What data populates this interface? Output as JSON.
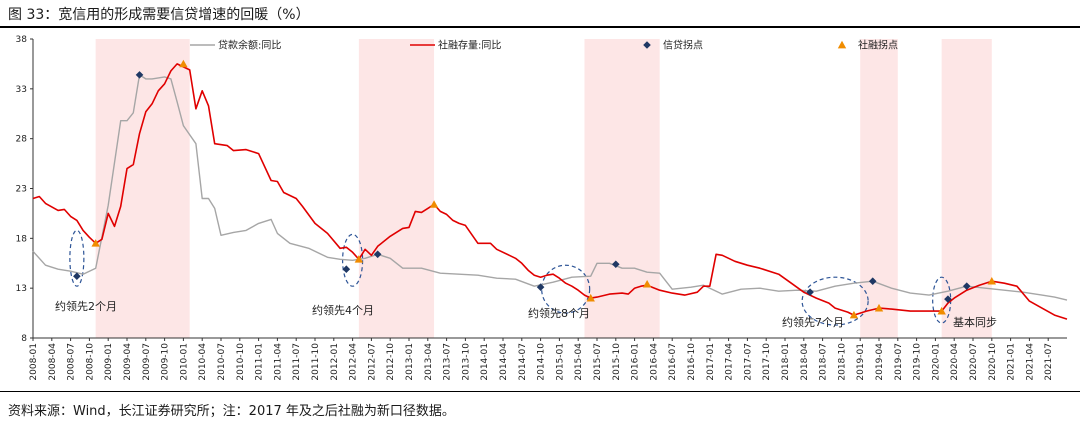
{
  "title": "图 33：宽信用的形成需要信贷增速的回暖（%）",
  "source": "资料来源：Wind，长江证券研究所；注：2017 年及之后社融为新口径数据。",
  "colors": {
    "loan": "#a6a6a6",
    "social": "#e00000",
    "loan_point": "#1f3864",
    "social_point": "#f08c00",
    "shade": "#fde6e6",
    "ellipse": "#2e5597"
  },
  "chart_data": {
    "type": "line",
    "title": "宽信用的形成需要信贷增速的回暖（%）",
    "xlabel": "",
    "ylabel": "%",
    "ylim": [
      8,
      38
    ],
    "yticks": [
      8,
      13,
      18,
      23,
      28,
      33,
      38
    ],
    "x_start": "2008-01",
    "x_end": "2021-10",
    "xtick_labels": [
      "2008-01",
      "2008-04",
      "2008-07",
      "2008-10",
      "2009-01",
      "2009-04",
      "2009-07",
      "2009-10",
      "2010-01",
      "2010-04",
      "2010-07",
      "2010-10",
      "2011-01",
      "2011-04",
      "2011-07",
      "2011-10",
      "2012-01",
      "2012-04",
      "2012-07",
      "2012-10",
      "2013-01",
      "2013-04",
      "2013-07",
      "2013-10",
      "2014-01",
      "2014-04",
      "2014-07",
      "2014-10",
      "2015-01",
      "2015-04",
      "2015-07",
      "2015-10",
      "2016-01",
      "2016-04",
      "2016-07",
      "2016-10",
      "2017-01",
      "2017-04",
      "2017-07",
      "2017-10",
      "2018-01",
      "2018-04",
      "2018-07",
      "2018-10",
      "2019-01",
      "2019-04",
      "2019-07",
      "2019-10",
      "2020-01",
      "2020-04",
      "2020-07",
      "2020-10",
      "2021-01",
      "2021-04",
      "2021-07"
    ],
    "shaded_periods": [
      [
        "2008-11",
        "2010-02"
      ],
      [
        "2012-05",
        "2013-05"
      ],
      [
        "2015-05",
        "2016-05"
      ],
      [
        "2019-01",
        "2019-07"
      ],
      [
        "2020-02",
        "2020-10"
      ]
    ],
    "series": [
      {
        "name": "贷款余额:同比",
        "style": "gray-line",
        "points": [
          [
            "2008-01",
            16.7
          ],
          [
            "2008-03",
            15.3
          ],
          [
            "2008-05",
            14.9
          ],
          [
            "2008-07",
            14.7
          ],
          [
            "2008-09",
            14.4
          ],
          [
            "2008-11",
            15.0
          ],
          [
            "2009-01",
            21.3
          ],
          [
            "2009-03",
            29.8
          ],
          [
            "2009-04",
            29.8
          ],
          [
            "2009-05",
            30.6
          ],
          [
            "2009-06",
            34.4
          ],
          [
            "2009-07",
            34.0
          ],
          [
            "2009-08",
            34.0
          ],
          [
            "2009-10",
            34.2
          ],
          [
            "2009-11",
            34.0
          ],
          [
            "2009-12",
            31.7
          ],
          [
            "2010-01",
            29.3
          ],
          [
            "2010-03",
            27.5
          ],
          [
            "2010-04",
            22.0
          ],
          [
            "2010-05",
            22.0
          ],
          [
            "2010-06",
            21.0
          ],
          [
            "2010-07",
            18.3
          ],
          [
            "2010-09",
            18.6
          ],
          [
            "2010-11",
            18.8
          ],
          [
            "2011-01",
            19.5
          ],
          [
            "2011-03",
            19.9
          ],
          [
            "2011-04",
            18.5
          ],
          [
            "2011-06",
            17.5
          ],
          [
            "2011-09",
            17.0
          ],
          [
            "2011-12",
            16.1
          ],
          [
            "2012-02",
            15.9
          ],
          [
            "2012-04",
            15.8
          ],
          [
            "2012-06",
            16.0
          ],
          [
            "2012-08",
            16.4
          ],
          [
            "2012-10",
            16.0
          ],
          [
            "2012-12",
            15.0
          ],
          [
            "2013-03",
            15.0
          ],
          [
            "2013-06",
            14.5
          ],
          [
            "2013-09",
            14.4
          ],
          [
            "2013-12",
            14.3
          ],
          [
            "2014-03",
            14.0
          ],
          [
            "2014-06",
            13.9
          ],
          [
            "2014-09",
            13.2
          ],
          [
            "2014-12",
            13.6
          ],
          [
            "2015-03",
            14.1
          ],
          [
            "2015-06",
            14.2
          ],
          [
            "2015-07",
            15.5
          ],
          [
            "2015-09",
            15.5
          ],
          [
            "2015-11",
            15.0
          ],
          [
            "2016-01",
            15.0
          ],
          [
            "2016-03",
            14.6
          ],
          [
            "2016-05",
            14.5
          ],
          [
            "2016-07",
            12.9
          ],
          [
            "2016-10",
            13.1
          ],
          [
            "2016-12",
            13.3
          ],
          [
            "2017-03",
            12.4
          ],
          [
            "2017-06",
            12.9
          ],
          [
            "2017-09",
            13.0
          ],
          [
            "2017-12",
            12.7
          ],
          [
            "2018-03",
            12.8
          ],
          [
            "2018-06",
            12.7
          ],
          [
            "2018-09",
            13.2
          ],
          [
            "2018-12",
            13.5
          ],
          [
            "2019-03",
            13.7
          ],
          [
            "2019-06",
            13.0
          ],
          [
            "2019-09",
            12.5
          ],
          [
            "2019-12",
            12.3
          ],
          [
            "2020-03",
            12.7
          ],
          [
            "2020-06",
            13.2
          ],
          [
            "2020-09",
            13.0
          ],
          [
            "2020-12",
            12.8
          ],
          [
            "2021-03",
            12.6
          ],
          [
            "2021-06",
            12.3
          ],
          [
            "2021-08",
            12.1
          ],
          [
            "2021-10",
            11.8
          ]
        ]
      },
      {
        "name": "社融存量:同比",
        "style": "red-line",
        "points": [
          [
            "2008-01",
            22.0
          ],
          [
            "2008-02",
            22.2
          ],
          [
            "2008-03",
            21.5
          ],
          [
            "2008-05",
            20.8
          ],
          [
            "2008-06",
            20.9
          ],
          [
            "2008-07",
            20.2
          ],
          [
            "2008-08",
            19.8
          ],
          [
            "2008-09",
            18.8
          ],
          [
            "2008-10",
            18.1
          ],
          [
            "2008-11",
            17.5
          ],
          [
            "2008-12",
            17.9
          ],
          [
            "2009-01",
            20.5
          ],
          [
            "2009-02",
            19.2
          ],
          [
            "2009-03",
            21.2
          ],
          [
            "2009-04",
            25.0
          ],
          [
            "2009-05",
            25.4
          ],
          [
            "2009-06",
            28.5
          ],
          [
            "2009-07",
            30.7
          ],
          [
            "2009-08",
            31.5
          ],
          [
            "2009-09",
            32.8
          ],
          [
            "2009-10",
            33.5
          ],
          [
            "2009-11",
            34.8
          ],
          [
            "2009-12",
            35.5
          ],
          [
            "2010-01",
            35.2
          ],
          [
            "2010-02",
            34.9
          ],
          [
            "2010-03",
            31.0
          ],
          [
            "2010-04",
            32.8
          ],
          [
            "2010-05",
            31.3
          ],
          [
            "2010-06",
            27.5
          ],
          [
            "2010-08",
            27.3
          ],
          [
            "2010-09",
            26.8
          ],
          [
            "2010-11",
            26.9
          ],
          [
            "2011-01",
            26.5
          ],
          [
            "2011-03",
            23.8
          ],
          [
            "2011-04",
            23.7
          ],
          [
            "2011-05",
            22.6
          ],
          [
            "2011-07",
            22.0
          ],
          [
            "2011-08",
            21.2
          ],
          [
            "2011-10",
            19.5
          ],
          [
            "2011-12",
            18.5
          ],
          [
            "2012-02",
            17.0
          ],
          [
            "2012-03",
            17.1
          ],
          [
            "2012-04",
            16.6
          ],
          [
            "2012-05",
            15.9
          ],
          [
            "2012-06",
            16.9
          ],
          [
            "2012-07",
            16.3
          ],
          [
            "2012-08",
            17.2
          ],
          [
            "2012-10",
            18.2
          ],
          [
            "2012-12",
            19.0
          ],
          [
            "2013-01",
            19.1
          ],
          [
            "2013-02",
            20.7
          ],
          [
            "2013-03",
            20.6
          ],
          [
            "2013-05",
            21.4
          ],
          [
            "2013-06",
            20.7
          ],
          [
            "2013-07",
            20.4
          ],
          [
            "2013-08",
            19.8
          ],
          [
            "2013-09",
            19.5
          ],
          [
            "2013-10",
            19.3
          ],
          [
            "2013-12",
            17.5
          ],
          [
            "2014-02",
            17.5
          ],
          [
            "2014-03",
            16.9
          ],
          [
            "2014-05",
            16.3
          ],
          [
            "2014-06",
            16.0
          ],
          [
            "2014-07",
            15.5
          ],
          [
            "2014-08",
            14.8
          ],
          [
            "2014-09",
            14.3
          ],
          [
            "2014-10",
            14.1
          ],
          [
            "2014-11",
            14.3
          ],
          [
            "2014-12",
            14.4
          ],
          [
            "2015-01",
            14.0
          ],
          [
            "2015-02",
            13.5
          ],
          [
            "2015-03",
            13.2
          ],
          [
            "2015-04",
            12.8
          ],
          [
            "2015-05",
            12.3
          ],
          [
            "2015-06",
            12.0
          ],
          [
            "2015-07",
            12.1
          ],
          [
            "2015-09",
            12.4
          ],
          [
            "2015-11",
            12.5
          ],
          [
            "2015-12",
            12.4
          ],
          [
            "2016-01",
            13.0
          ],
          [
            "2016-02",
            13.2
          ],
          [
            "2016-03",
            13.3
          ],
          [
            "2016-05",
            12.8
          ],
          [
            "2016-07",
            12.5
          ],
          [
            "2016-09",
            12.3
          ],
          [
            "2016-11",
            12.6
          ],
          [
            "2016-12",
            13.2
          ],
          [
            "2017-01",
            13.2
          ],
          [
            "2017-02",
            16.4
          ],
          [
            "2017-03",
            16.3
          ],
          [
            "2017-05",
            15.7
          ],
          [
            "2017-07",
            15.3
          ],
          [
            "2017-09",
            15.0
          ],
          [
            "2017-12",
            14.4
          ],
          [
            "2018-02",
            13.5
          ],
          [
            "2018-04",
            12.6
          ],
          [
            "2018-06",
            12.0
          ],
          [
            "2018-08",
            11.5
          ],
          [
            "2018-09",
            11.0
          ],
          [
            "2018-11",
            10.6
          ],
          [
            "2018-12",
            10.3
          ],
          [
            "2019-01",
            10.5
          ],
          [
            "2019-02",
            10.7
          ],
          [
            "2019-04",
            11.0
          ],
          [
            "2019-06",
            10.9
          ],
          [
            "2019-09",
            10.7
          ],
          [
            "2019-12",
            10.7
          ],
          [
            "2020-01",
            10.7
          ],
          [
            "2020-02",
            10.7
          ],
          [
            "2020-03",
            11.5
          ],
          [
            "2020-04",
            12.0
          ],
          [
            "2020-06",
            12.8
          ],
          [
            "2020-08",
            13.3
          ],
          [
            "2020-10",
            13.7
          ],
          [
            "2020-12",
            13.5
          ],
          [
            "2021-02",
            13.2
          ],
          [
            "2021-04",
            11.7
          ],
          [
            "2021-06",
            11.0
          ],
          [
            "2021-08",
            10.3
          ],
          [
            "2021-10",
            9.9
          ]
        ]
      }
    ],
    "markers": [
      {
        "name": "信贷拐点",
        "shape": "diamond",
        "points": [
          [
            "2008-08",
            14.2
          ],
          [
            "2009-06",
            34.4
          ],
          [
            "2012-03",
            14.9
          ],
          [
            "2012-08",
            16.4
          ],
          [
            "2014-10",
            13.1
          ],
          [
            "2015-10",
            15.4
          ],
          [
            "2018-05",
            12.6
          ],
          [
            "2019-03",
            13.7
          ],
          [
            "2020-03",
            11.9
          ],
          [
            "2020-06",
            13.2
          ]
        ]
      },
      {
        "name": "社融拐点",
        "shape": "triangle",
        "points": [
          [
            "2008-11",
            17.5
          ],
          [
            "2010-01",
            35.5
          ],
          [
            "2012-05",
            15.9
          ],
          [
            "2013-05",
            21.4
          ],
          [
            "2015-06",
            12.0
          ],
          [
            "2016-03",
            13.4
          ],
          [
            "2018-12",
            10.3
          ],
          [
            "2019-04",
            11.0
          ],
          [
            "2020-02",
            10.7
          ],
          [
            "2020-10",
            13.7
          ]
        ]
      }
    ],
    "legend": [
      "贷款余额:同比",
      "社融存量:同比",
      "信贷拐点",
      "社融拐点"
    ],
    "legend_position": "top",
    "annotations": [
      {
        "text": "约领先2个月",
        "anchor": [
          "2008-10",
          17
        ]
      },
      {
        "text": "约领先4个月",
        "anchor": [
          "2012-04",
          17
        ]
      },
      {
        "text": "约领先8个月",
        "anchor": [
          "2015-01",
          13
        ]
      },
      {
        "text": "约领先7个月",
        "anchor": [
          "2018-09",
          12
        ]
      },
      {
        "text": "基本同步",
        "anchor": [
          "2020-03",
          12
        ]
      }
    ]
  }
}
